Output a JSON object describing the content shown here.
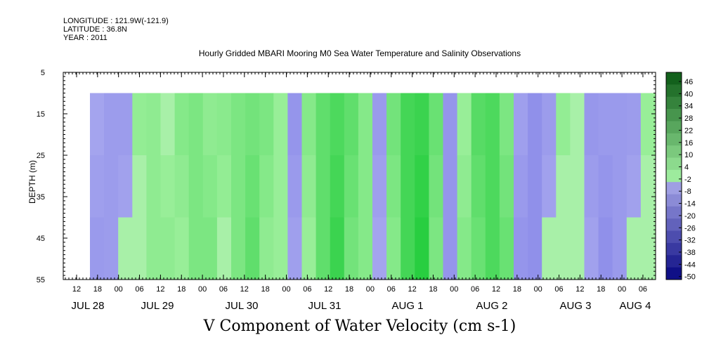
{
  "header": {
    "longitude": "LONGITUDE : 121.9W(-121.9)",
    "latitude": "LATITUDE : 36.8N",
    "year": "YEAR : 2011"
  },
  "chart_data": {
    "type": "heatmap",
    "title": "Hourly Gridded MBARI Mooring M0 Sea Water Temperature and Salinity Observations",
    "xlabel": "V Component of Water Velocity (cm s-1)",
    "ylabel": "DEPTH (m)",
    "y_ticks": [
      5,
      15,
      25,
      35,
      45,
      55
    ],
    "ylim": [
      5,
      55
    ],
    "x_hour_labels": [
      "12",
      "18",
      "00",
      "06",
      "12",
      "18",
      "00",
      "06",
      "12",
      "18",
      "00",
      "06",
      "12",
      "18",
      "00",
      "06",
      "12",
      "18",
      "00",
      "06",
      "12",
      "18",
      "00",
      "06",
      "12",
      "18",
      "00",
      "06"
    ],
    "x_day_labels": [
      "JUL 28",
      "JUL 29",
      "JUL 30",
      "JUL 31",
      "AUG  1",
      "AUG  2",
      "AUG  3",
      "AUG  4"
    ],
    "data_depth_range": [
      10,
      55
    ],
    "colorbar": {
      "levels": [
        46,
        40,
        34,
        28,
        22,
        16,
        10,
        4,
        -2,
        -8,
        -14,
        -20,
        -26,
        -32,
        -38,
        -44,
        -50
      ],
      "min": -50,
      "max": 52
    },
    "profile_pattern_v_cms": [
      -4,
      -5,
      -3,
      3,
      6,
      4,
      6,
      10,
      8,
      5,
      10,
      14,
      8,
      4,
      -6,
      6,
      16,
      22,
      14,
      8,
      -4,
      10,
      22,
      26,
      12,
      -8,
      6,
      16,
      20,
      12,
      -6,
      -10,
      -3,
      3,
      2,
      -5,
      -8,
      -6,
      -3,
      2
    ]
  },
  "colors": {
    "negative": "#a6a6ee",
    "near_zero": "#98ee98",
    "strong_positive": "#22cc44"
  }
}
